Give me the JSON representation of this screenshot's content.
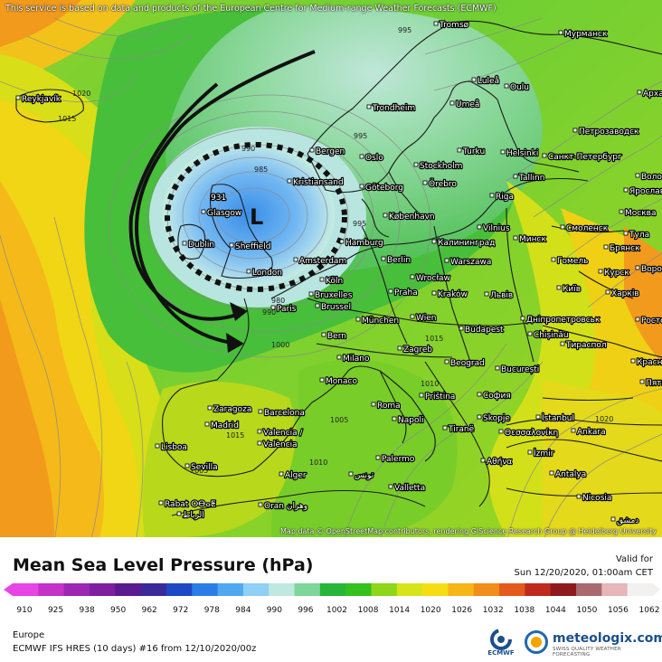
{
  "map": {
    "attribution_top": "This service is based on data and products of the European Centre for Medium-range Weather Forecasts (ECMWF)",
    "attribution_bottom": "Map data © OpenStreetMap contributors, rendering GIScience Research Group @ Heidelberg University",
    "low_label": "L",
    "low_pressure": "931",
    "cities": [
      {
        "name": "Reykjavík"
      },
      {
        "name": "Tromsø"
      },
      {
        "name": "Мурманск"
      },
      {
        "name": "Luleå"
      },
      {
        "name": "Oulu"
      },
      {
        "name": "Umeå"
      },
      {
        "name": "Архангельск"
      },
      {
        "name": "Trondheim"
      },
      {
        "name": "Петрозаводск"
      },
      {
        "name": "Bergen"
      },
      {
        "name": "Turku"
      },
      {
        "name": "Helsinki"
      },
      {
        "name": "Санкт-Петербург"
      },
      {
        "name": "Oslo"
      },
      {
        "name": "Stockholm"
      },
      {
        "name": "Örebro"
      },
      {
        "name": "Tallinn"
      },
      {
        "name": "Вологда"
      },
      {
        "name": "Kristiansand"
      },
      {
        "name": "Göteborg"
      },
      {
        "name": "Ярославль"
      },
      {
        "name": "Riga"
      },
      {
        "name": "København"
      },
      {
        "name": "Glasgow"
      },
      {
        "name": "Москва"
      },
      {
        "name": "Vilnius"
      },
      {
        "name": "Смоленск"
      },
      {
        "name": "Минск"
      },
      {
        "name": "Калининград"
      },
      {
        "name": "Тула"
      },
      {
        "name": "Dublin"
      },
      {
        "name": "Sheffield"
      },
      {
        "name": "Hamburg"
      },
      {
        "name": "Брянск"
      },
      {
        "name": "Amsterdam"
      },
      {
        "name": "Berlin"
      },
      {
        "name": "Warszawa"
      },
      {
        "name": "Гомель"
      },
      {
        "name": "Курск"
      },
      {
        "name": "London"
      },
      {
        "name": "Wrocław"
      },
      {
        "name": "Воронеж"
      },
      {
        "name": "Köln"
      },
      {
        "name": "Київ"
      },
      {
        "name": "Bruxelles"
      },
      {
        "name": "Харків"
      },
      {
        "name": "Brussel"
      },
      {
        "name": "Praha"
      },
      {
        "name": "Kraków"
      },
      {
        "name": "Львів"
      },
      {
        "name": "Paris"
      },
      {
        "name": "München"
      },
      {
        "name": "Wien"
      },
      {
        "name": "Дніпропетровськ"
      },
      {
        "name": "Ростов"
      },
      {
        "name": "Budapest"
      },
      {
        "name": "Chișinău"
      },
      {
        "name": "Bern"
      },
      {
        "name": "Тираспол"
      },
      {
        "name": "Zagreb"
      },
      {
        "name": "Milano"
      },
      {
        "name": "Beograd"
      },
      {
        "name": "București"
      },
      {
        "name": "Красно"
      },
      {
        "name": "Пяти"
      },
      {
        "name": "Monaco"
      },
      {
        "name": "Priština"
      },
      {
        "name": "София"
      },
      {
        "name": "Roma"
      },
      {
        "name": "Zaragoza"
      },
      {
        "name": "Barcelona"
      },
      {
        "name": "Madrid"
      },
      {
        "name": "Skopje"
      },
      {
        "name": "İstanbul"
      },
      {
        "name": "Napoli"
      },
      {
        "name": "Tiranë"
      },
      {
        "name": "Θεσσαλονίκη"
      },
      {
        "name": "Valencia /"
      },
      {
        "name": "València"
      },
      {
        "name": "Ankara"
      },
      {
        "name": "Lisboa"
      },
      {
        "name": "Sevilla"
      },
      {
        "name": "Αθήνα"
      },
      {
        "name": "İzmir"
      },
      {
        "name": "Alger"
      },
      {
        "name": "Palermo"
      },
      {
        "name": "تونس"
      },
      {
        "name": "Antalya"
      },
      {
        "name": "Valletta"
      },
      {
        "name": "Nicosia"
      },
      {
        "name": "Rabat ⵔⴱⴰⵟ"
      },
      {
        "name": "الرباط"
      },
      {
        "name": "Oran وهران"
      },
      {
        "name": "دمشق"
      }
    ],
    "isobars": [
      "1020",
      "1015",
      "995",
      "990",
      "985",
      "995",
      "980",
      "1000",
      "1005",
      "1010",
      "1010",
      "1015",
      "1020",
      "1005",
      "1015",
      "995",
      "990"
    ]
  },
  "footer": {
    "title": "Mean Sea Level Pressure (hPa)",
    "valid_label": "Valid for",
    "valid_time": "Sun 12/20/2020, 01:00am CET",
    "region": "Europe",
    "model": "ECMWF IFS HRES (10 days) #16 from  12/10/2020/00z",
    "ecmwf_text": "ECMWF",
    "brand": "meteologix.com",
    "brand_tagline": "SWISS QUALITY WEATHER FORECASTING"
  },
  "scale": {
    "ticks": [
      "910",
      "925",
      "938",
      "950",
      "962",
      "972",
      "978",
      "984",
      "990",
      "996",
      "1002",
      "1008",
      "1014",
      "1020",
      "1026",
      "1032",
      "1038",
      "1044",
      "1050",
      "1056",
      "1062"
    ],
    "colors": [
      "#e845e6",
      "#c432c8",
      "#9d27b4",
      "#7d1fa0",
      "#5a1a90",
      "#3b2a9a",
      "#1d49c4",
      "#2c7ee6",
      "#4fa8f0",
      "#8fd0f4",
      "#bfe8e0",
      "#7fd69a",
      "#28b53a",
      "#34c01d",
      "#8ed61a",
      "#d6e41a",
      "#f6dd12",
      "#f7b516",
      "#f28c1a",
      "#e35a1c",
      "#c02a1e",
      "#8e1a1e",
      "#a86a6e",
      "#e6b6b8",
      "#f3f0f0"
    ]
  }
}
